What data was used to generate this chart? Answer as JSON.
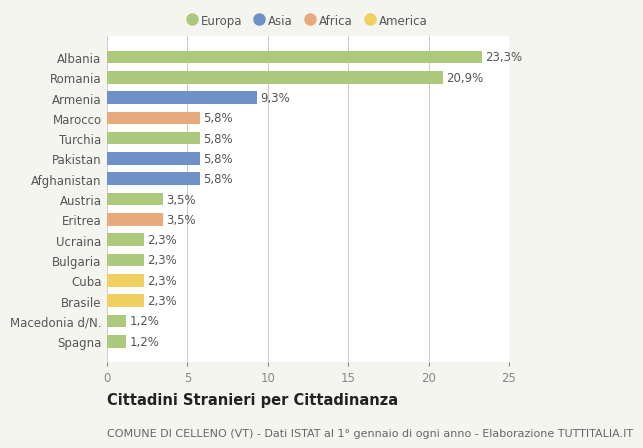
{
  "countries": [
    "Albania",
    "Romania",
    "Armenia",
    "Marocco",
    "Turchia",
    "Pakistan",
    "Afghanistan",
    "Austria",
    "Eritrea",
    "Ucraina",
    "Bulgaria",
    "Cuba",
    "Brasile",
    "Macedonia d/N.",
    "Spagna"
  ],
  "values": [
    23.3,
    20.9,
    9.3,
    5.8,
    5.8,
    5.8,
    5.8,
    3.5,
    3.5,
    2.3,
    2.3,
    2.3,
    2.3,
    1.2,
    1.2
  ],
  "labels": [
    "23,3%",
    "20,9%",
    "9,3%",
    "5,8%",
    "5,8%",
    "5,8%",
    "5,8%",
    "3,5%",
    "3,5%",
    "2,3%",
    "2,3%",
    "2,3%",
    "2,3%",
    "1,2%",
    "1,2%"
  ],
  "colors": [
    "#adc97c",
    "#adc97c",
    "#7090c8",
    "#e8aa7a",
    "#adc97c",
    "#7090c8",
    "#7090c8",
    "#adc97c",
    "#e8aa7a",
    "#adc97c",
    "#adc97c",
    "#f0d060",
    "#f0d060",
    "#adc97c",
    "#adc97c"
  ],
  "legend": {
    "labels": [
      "Europa",
      "Asia",
      "Africa",
      "America"
    ],
    "colors": [
      "#adc97c",
      "#7090c8",
      "#e8aa7a",
      "#f0d060"
    ]
  },
  "xlim": [
    0,
    25
  ],
  "xticks": [
    0,
    5,
    10,
    15,
    20,
    25
  ],
  "title": "Cittadini Stranieri per Cittadinanza",
  "subtitle": "COMUNE DI CELLENO (VT) - Dati ISTAT al 1° gennaio di ogni anno - Elaborazione TUTTITALIA.IT",
  "background_color": "#f5f5f0",
  "plot_background": "#ffffff",
  "bar_height": 0.62,
  "label_fontsize": 8.5,
  "tick_fontsize": 8.5,
  "title_fontsize": 10.5,
  "subtitle_fontsize": 8.0
}
